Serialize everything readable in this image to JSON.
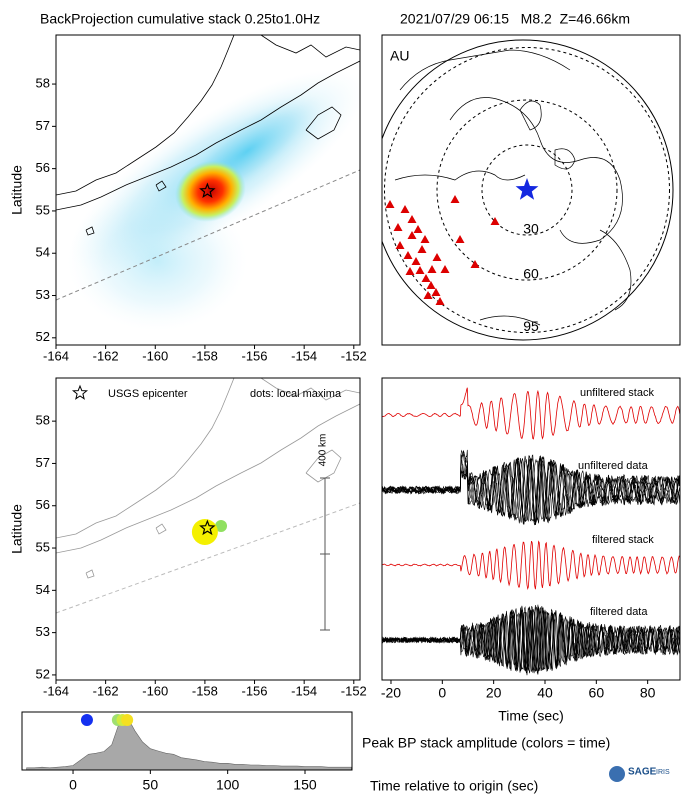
{
  "chart_data": [
    {
      "type": "map",
      "title": "BackProjection cumulative stack 0.25to1.0Hz",
      "ylabel": "Latitude",
      "xlim": [
        -164,
        -151.75
      ],
      "ylim": [
        51.83,
        59.16
      ],
      "xticks": [
        -164,
        -162,
        -160,
        -158,
        -156,
        -154,
        -152
      ],
      "yticks": [
        52,
        53,
        54,
        55,
        56,
        57,
        58
      ],
      "epicenter": {
        "lon": -157.9,
        "lat": 55.47
      },
      "heatmap": true
    },
    {
      "type": "polar",
      "title": "2021/07/29 06:15   M8.2  Z=46.66km",
      "label": "AU",
      "rings": [
        30,
        60,
        95
      ],
      "station_color": "#dd0000",
      "star_color": "#1428e0"
    },
    {
      "type": "map",
      "ylabel": "Latitude",
      "xlim": [
        -164,
        -151.75
      ],
      "ylim": [
        51.88,
        59.02
      ],
      "xticks": [
        -164,
        -162,
        -160,
        -158,
        -156,
        -154,
        -152
      ],
      "yticks": [
        52,
        53,
        54,
        55,
        56,
        57,
        58
      ],
      "legend": [
        "USGS epicenter",
        "dots: local maxima"
      ],
      "scale_label": "400 km",
      "epicenter": {
        "lon": -157.9,
        "lat": 55.47
      },
      "maxima": [
        {
          "lon": -157.35,
          "lat": 55.52,
          "color": "#90e060"
        },
        {
          "lon": -158.0,
          "lat": 55.38,
          "color": "#f4f000"
        }
      ]
    },
    {
      "type": "waveform",
      "xlabel": "Time (sec)",
      "xlim": [
        -23.5,
        92.6
      ],
      "xticks": [
        -20,
        0,
        20,
        40,
        60,
        80
      ],
      "traces": [
        {
          "name": "unfiltered stack",
          "color": "#e00000"
        },
        {
          "name": "unfiltered data",
          "color": "#000000"
        },
        {
          "name": "filtered stack",
          "color": "#e00000"
        },
        {
          "name": "filtered data",
          "color": "#000000"
        }
      ]
    },
    {
      "type": "area",
      "title": "Peak BP stack amplitude (colors = time)",
      "xlabel": "Time relative to origin (sec)",
      "xlim": [
        -33,
        180.4
      ],
      "xticks": [
        0,
        50,
        100,
        150
      ],
      "color": "#a8a8a8",
      "x": [
        -30,
        -25,
        -20,
        -15,
        -10,
        -5,
        0,
        5,
        10,
        15,
        20,
        25,
        30,
        35,
        40,
        45,
        50,
        55,
        60,
        65,
        70,
        75,
        80,
        85,
        90,
        95,
        100,
        105,
        110,
        115,
        120,
        125,
        130,
        135,
        140,
        145,
        150,
        155,
        160,
        165,
        170,
        175,
        180
      ],
      "values": [
        0.04,
        0.04,
        0.05,
        0.04,
        0.05,
        0.06,
        0.08,
        0.18,
        0.28,
        0.3,
        0.33,
        0.45,
        0.85,
        0.95,
        0.7,
        0.5,
        0.38,
        0.34,
        0.3,
        0.28,
        0.22,
        0.2,
        0.18,
        0.15,
        0.14,
        0.12,
        0.12,
        0.1,
        0.1,
        0.09,
        0.09,
        0.08,
        0.08,
        0.07,
        0.07,
        0.07,
        0.06,
        0.06,
        0.06,
        0.05,
        0.05,
        0.05,
        0.05
      ],
      "peaks": {
        "x": [
          9,
          29,
          32,
          35
        ],
        "colors": [
          "#1430f0",
          "#a0e070",
          "#d0ec40",
          "#f4e020"
        ]
      },
      "logo": {
        "text": "SAGE",
        "subtext": "IRIS"
      }
    }
  ]
}
